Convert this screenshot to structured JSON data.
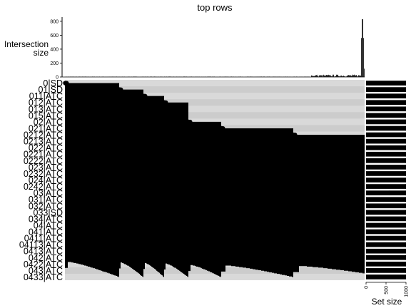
{
  "chart_data": {
    "type": "upset",
    "title": "top rows",
    "intersection_axis": {
      "label_lines": [
        "Intersection",
        "size"
      ],
      "ticks": [
        0,
        200,
        400,
        600,
        800
      ],
      "ylim": [
        0,
        860
      ]
    },
    "set_size_axis": {
      "label": "Set size",
      "ticks": [
        0,
        500,
        1000
      ],
      "xlim": [
        0,
        1000
      ]
    },
    "sets": [
      "0|SD",
      "01|SD",
      "011|ATC",
      "012|ATC",
      "013|ATC",
      "015|ATC",
      "02|ATC",
      "021|ATC",
      "0212|ATC",
      "0213|ATC",
      "022|ATC",
      "0221|ATC",
      "0222|ATC",
      "023|ATC",
      "0232|ATC",
      "024|ATC",
      "0242|ATC",
      "03|ATC",
      "031|ATC",
      "032|ATC",
      "033|SD",
      "034|ATC",
      "04|ATC",
      "041|ATC",
      "0411|ATC",
      "04113|ATC",
      "0413|ATC",
      "042|ATC",
      "0422|ATC",
      "043|ATC",
      "0433|ATC"
    ],
    "set_sizes": [
      1000,
      1000,
      1000,
      1000,
      1000,
      1000,
      1000,
      1000,
      1000,
      1000,
      1000,
      1000,
      1000,
      1000,
      1000,
      1000,
      1000,
      1000,
      1000,
      1000,
      1000,
      1000,
      1000,
      1000,
      1000,
      1000,
      1000,
      1000,
      1000,
      1000,
      1000
    ],
    "intersections": {
      "count": 420,
      "trailing_large_sizes": [
        560,
        830,
        830,
        560,
        120
      ],
      "typical_size_range": [
        0,
        40
      ]
    },
    "matrix_groups": [
      {
        "start_row": 0,
        "span": 0.18
      },
      {
        "start_row": 1,
        "span": 0.08
      },
      {
        "start_row": 2,
        "span": 0.07
      },
      {
        "start_row": 3,
        "span": 0.08
      },
      {
        "start_row": 6,
        "span": 0.11
      },
      {
        "start_row": 7,
        "span": 0.24
      },
      {
        "start_row": 8,
        "span": 0.32
      },
      {
        "start_row": 17,
        "span": 0.16
      }
    ],
    "grid": false,
    "colors": {
      "bars": "#000000",
      "matrix_background": "#cccccc",
      "row_stripe": "#d9d9d9",
      "dot_on": "#000000",
      "dot_off": "#bbbbbb"
    }
  }
}
